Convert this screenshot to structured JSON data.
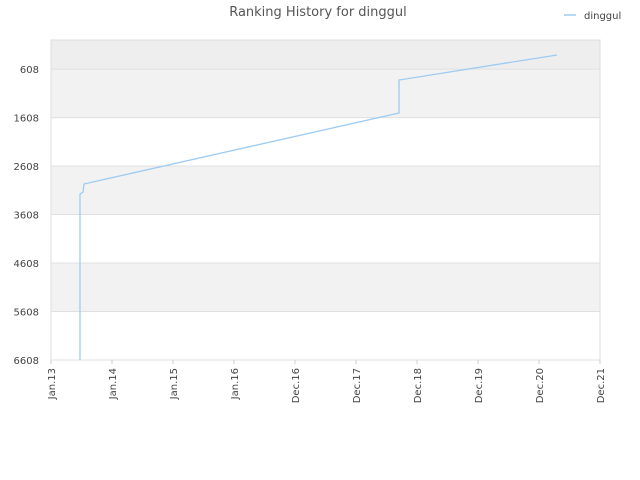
{
  "chart_data": {
    "type": "line",
    "title": "Ranking History for dinggul",
    "series": [
      {
        "name": "dinggul",
        "color": "#9ecbf2",
        "x": [
          0.475,
          0.475,
          0.525,
          0.54,
          5.705,
          5.705,
          8.295
        ],
        "values": [
          6608,
          3185,
          3143,
          2978,
          1514,
          833,
          317
        ]
      }
    ],
    "xlim": [
      0,
      9
    ],
    "xticks": [
      {
        "value": 0,
        "label": "Jan.13"
      },
      {
        "value": 1,
        "label": "Jan.14"
      },
      {
        "value": 2,
        "label": "Jan.15"
      },
      {
        "value": 3,
        "label": "Jan.16"
      },
      {
        "value": 4,
        "label": "Dec.16"
      },
      {
        "value": 5,
        "label": "Dec.17"
      },
      {
        "value": 6,
        "label": "Dec.18"
      },
      {
        "value": 7,
        "label": "Dec.19"
      },
      {
        "value": 8,
        "label": "Dec.20"
      },
      {
        "value": 9,
        "label": "Dec.21"
      }
    ],
    "ylim": [
      6608,
      8
    ],
    "yticks": [
      608,
      1608,
      2608,
      3608,
      4608,
      5608,
      6608
    ],
    "grid": true,
    "legend": "top-right"
  }
}
